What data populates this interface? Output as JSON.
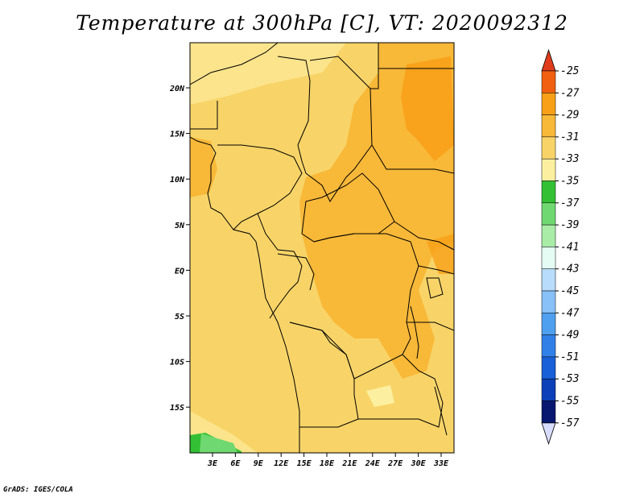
{
  "title": "Temperature at 300hPa [C], VT: 2020092312",
  "credit": "GrADS: IGES/COLA",
  "map": {
    "lat_labels": [
      "20N",
      "15N",
      "10N",
      "5N",
      "EQ",
      "5S",
      "10S",
      "15S"
    ],
    "lon_labels": [
      "3E",
      "6E",
      "9E",
      "12E",
      "15E",
      "18E",
      "21E",
      "24E",
      "27E",
      "30E",
      "33E"
    ]
  },
  "colorbar": {
    "labels": [
      "-25",
      "-27",
      "-29",
      "-31",
      "-33",
      "-35",
      "-37",
      "-39",
      "-41",
      "-43",
      "-45",
      "-47",
      "-49",
      "-51",
      "-53",
      "-55",
      "-57"
    ],
    "colors": [
      "#e03c1c",
      "#f06010",
      "#f8a018",
      "#f8b838",
      "#f8d468",
      "#fcf0a0",
      "#34c034",
      "#70d870",
      "#a8eca8",
      "#e4fcf4",
      "#b8dcfc",
      "#88c0f8",
      "#50a0f0",
      "#3080e8",
      "#1860d8",
      "#0c40b8",
      "#081870",
      "#d8dcfc"
    ]
  }
}
